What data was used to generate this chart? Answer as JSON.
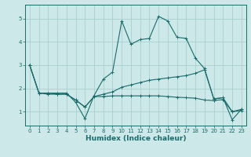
{
  "xlabel": "Humidex (Indice chaleur)",
  "bg_color": "#cce8e8",
  "grid_color": "#aacfcf",
  "line_color": "#1a6b6b",
  "xlim": [
    -0.5,
    23.5
  ],
  "ylim": [
    0.4,
    5.6
  ],
  "yticks": [
    1,
    2,
    3,
    4,
    5
  ],
  "xticks": [
    0,
    1,
    2,
    3,
    4,
    5,
    6,
    7,
    8,
    9,
    10,
    11,
    12,
    13,
    14,
    15,
    16,
    17,
    18,
    19,
    20,
    21,
    22,
    23
  ],
  "lines": [
    {
      "x": [
        0,
        1,
        2,
        3,
        4,
        5,
        6,
        7,
        8,
        9,
        10,
        11,
        12,
        13,
        14,
        15,
        16,
        17,
        18,
        19,
        20,
        21,
        22,
        23
      ],
      "y": [
        3.0,
        1.8,
        1.8,
        1.8,
        1.8,
        1.4,
        0.7,
        1.7,
        2.4,
        2.7,
        4.9,
        3.9,
        4.1,
        4.15,
        5.1,
        4.9,
        4.2,
        4.15,
        3.3,
        2.85,
        1.55,
        1.6,
        0.65,
        1.1
      ]
    },
    {
      "x": [
        0,
        1,
        2,
        3,
        4,
        5,
        6,
        7,
        8,
        9,
        10,
        11,
        12,
        13,
        14,
        15,
        16,
        17,
        18,
        19,
        20,
        21,
        22,
        23
      ],
      "y": [
        3.0,
        1.8,
        1.8,
        1.75,
        1.75,
        1.5,
        1.2,
        1.65,
        1.75,
        1.85,
        2.05,
        2.15,
        2.25,
        2.35,
        2.4,
        2.45,
        2.5,
        2.55,
        2.65,
        2.8,
        1.55,
        1.6,
        1.0,
        1.1
      ]
    },
    {
      "x": [
        0,
        1,
        2,
        3,
        4,
        5,
        6,
        7,
        8,
        9,
        10,
        11,
        12,
        13,
        14,
        15,
        16,
        17,
        18,
        19,
        20,
        21,
        22,
        23
      ],
      "y": [
        3.0,
        1.8,
        1.75,
        1.75,
        1.75,
        1.5,
        1.2,
        1.65,
        1.65,
        1.68,
        1.68,
        1.68,
        1.68,
        1.68,
        1.68,
        1.65,
        1.62,
        1.6,
        1.58,
        1.5,
        1.48,
        1.52,
        1.0,
        1.05
      ]
    }
  ]
}
